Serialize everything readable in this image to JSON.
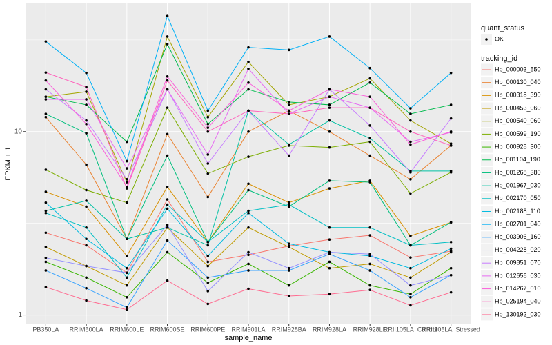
{
  "chart_data": {
    "type": "line",
    "x_label": "sample_name",
    "y_label": "FPKM + 1",
    "log_y": true,
    "grid": true,
    "ylim": [
      0.89,
      50
    ],
    "yticks": [
      1,
      10
    ],
    "categories": [
      "PB350LA",
      "RRIM600LA",
      "RRIM600LE",
      "RRIM600SE",
      "RRIM600PE",
      "RRIM901LA",
      "RRIM928BA",
      "RRIM928LA",
      "RRIM928LE",
      "RRII105LA_Control",
      "RRII105LA_Stressed"
    ],
    "shape_legend": {
      "title": "quant_status",
      "entries": [
        "OK"
      ],
      "color": "#000000"
    },
    "legend_title": "tracking_id",
    "series": [
      {
        "name": "Hb_000003_550",
        "color": "#F8766D",
        "values": [
          2.81,
          2.4,
          1.7,
          4.27,
          1.95,
          2.13,
          2.38,
          2.58,
          2.72,
          2.06,
          2.23
        ]
      },
      {
        "name": "Hb_000130_040",
        "color": "#EA8331",
        "values": [
          12,
          6.6,
          2.6,
          9.7,
          4.4,
          10,
          13,
          10,
          7.4,
          5.5,
          8.4
        ]
      },
      {
        "name": "Hb_000318_390",
        "color": "#D89000",
        "values": [
          4.7,
          3.9,
          2.1,
          5.0,
          2.5,
          5.2,
          4.1,
          4.9,
          5.4,
          2.7,
          3.2
        ]
      },
      {
        "name": "Hb_000453_060",
        "color": "#C09B00",
        "values": [
          2.35,
          1.85,
          1.45,
          3.0,
          1.85,
          3.0,
          2.35,
          1.8,
          1.9,
          1.6,
          2.2
        ]
      },
      {
        "name": "Hb_000540_060",
        "color": "#A3A500",
        "values": [
          15.5,
          16.5,
          5.3,
          33,
          12,
          24,
          14,
          15.5,
          19.5,
          11.5,
          8.6
        ]
      },
      {
        "name": "Hb_000599_190",
        "color": "#7CAE00",
        "values": [
          6.2,
          4.8,
          4.1,
          13.5,
          5.9,
          7.3,
          8.4,
          8.2,
          8.8,
          4.6,
          6.0
        ]
      },
      {
        "name": "Hb_000928_300",
        "color": "#39B600",
        "values": [
          1.95,
          1.6,
          1.25,
          2.2,
          1.5,
          1.9,
          1.45,
          1.95,
          1.45,
          1.3,
          1.8
        ]
      },
      {
        "name": "Hb_001104_190",
        "color": "#00BB4E",
        "values": [
          15.5,
          14,
          8.8,
          30,
          11,
          17,
          14.5,
          14,
          18.5,
          12.5,
          14
        ]
      },
      {
        "name": "Hb_001268_380",
        "color": "#00BF7D",
        "values": [
          12.5,
          9.8,
          2.6,
          7.4,
          2.5,
          4.8,
          3.9,
          5.4,
          5.3,
          2.4,
          3.2
        ]
      },
      {
        "name": "Hb_001967_030",
        "color": "#00C1A3",
        "values": [
          3.7,
          4.2,
          2.6,
          3.0,
          2.4,
          13,
          8.5,
          11.5,
          9.2,
          6.1,
          6.1
        ]
      },
      {
        "name": "Hb_002170_050",
        "color": "#00BFC4",
        "values": [
          3.6,
          3.0,
          1.6,
          4.0,
          2.5,
          3.7,
          4.0,
          3.0,
          3.0,
          2.4,
          2.5
        ]
      },
      {
        "name": "Hb_002188_110",
        "color": "#00BAE0",
        "values": [
          4.1,
          2.6,
          1.8,
          3.8,
          2.1,
          3.6,
          2.45,
          2.2,
          2.1,
          1.8,
          2.3
        ]
      },
      {
        "name": "Hb_002701_040",
        "color": "#00B0F6",
        "values": [
          31,
          20.9,
          6.9,
          42.7,
          13,
          28.8,
          27.9,
          33,
          22.2,
          13.4,
          20.9
        ]
      },
      {
        "name": "Hb_003906_160",
        "color": "#35A2FF",
        "values": [
          1.75,
          1.4,
          1.1,
          2.55,
          1.6,
          1.75,
          1.75,
          2.15,
          1.75,
          1.25,
          1.65
        ]
      },
      {
        "name": "Hb_004228_020",
        "color": "#9590FF",
        "values": [
          2.05,
          1.85,
          1.7,
          3.1,
          1.35,
          2.2,
          1.8,
          2.2,
          2.15,
          1.45,
          1.65
        ]
      },
      {
        "name": "Hb_009851_070",
        "color": "#C77CFF",
        "values": [
          17,
          11.5,
          5.5,
          17,
          6.7,
          13,
          7.4,
          17,
          10.8,
          6.0,
          11.8
        ]
      },
      {
        "name": "Hb_012656_030",
        "color": "#E76BF3",
        "values": [
          15,
          15,
          6.3,
          17,
          7.5,
          22,
          12.5,
          15.5,
          13.5,
          8.8,
          9.9
        ]
      },
      {
        "name": "Hb_014267_010",
        "color": "#FA62DB",
        "values": [
          19,
          11,
          5.0,
          20,
          10.5,
          18.5,
          13,
          17,
          15.5,
          8.5,
          10
        ]
      },
      {
        "name": "Hb_025194_040",
        "color": "#FF62BC",
        "values": [
          21,
          17.5,
          4.9,
          19,
          10,
          13,
          12.5,
          13.5,
          13.5,
          10,
          8.4
        ]
      },
      {
        "name": "Hb_130192_030",
        "color": "#FF6C91",
        "values": [
          1.42,
          1.2,
          1.07,
          1.54,
          1.15,
          1.39,
          1.27,
          1.3,
          1.37,
          1.13,
          1.33
        ]
      }
    ]
  }
}
